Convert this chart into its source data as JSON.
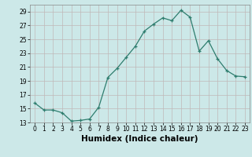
{
  "x": [
    0,
    1,
    2,
    3,
    4,
    5,
    6,
    7,
    8,
    9,
    10,
    11,
    12,
    13,
    14,
    15,
    16,
    17,
    18,
    19,
    20,
    21,
    22,
    23
  ],
  "y": [
    15.8,
    14.8,
    14.8,
    14.4,
    13.2,
    13.3,
    13.5,
    15.2,
    19.5,
    20.8,
    22.4,
    24.0,
    26.2,
    27.2,
    28.1,
    27.7,
    29.2,
    28.2,
    23.3,
    24.8,
    22.2,
    20.5,
    19.7,
    19.6
  ],
  "line_color": "#2e7d6e",
  "marker": "+",
  "marker_color": "#2e7d6e",
  "bg_color": "#cce8e8",
  "grid_color": "#c0b8b8",
  "xlabel": "Humidex (Indice chaleur)",
  "ylim": [
    13,
    30
  ],
  "yticks": [
    13,
    15,
    17,
    19,
    21,
    23,
    25,
    27,
    29
  ],
  "xticks": [
    0,
    1,
    2,
    3,
    4,
    5,
    6,
    7,
    8,
    9,
    10,
    11,
    12,
    13,
    14,
    15,
    16,
    17,
    18,
    19,
    20,
    21,
    22,
    23
  ],
  "tick_fontsize": 5.5,
  "xlabel_fontsize": 7.5
}
